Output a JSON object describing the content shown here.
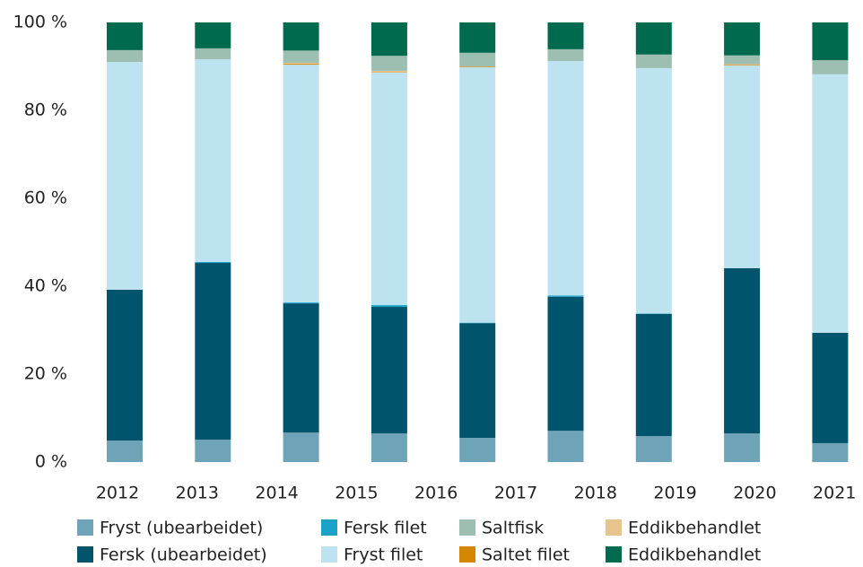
{
  "chart_data": {
    "type": "stacked_bar",
    "categories": [
      "2012",
      "2013",
      "2014",
      "2015",
      "2016",
      "2017",
      "2018",
      "2019",
      "2020",
      "2021"
    ],
    "ylim": [
      0,
      100
    ],
    "yticks": [
      {
        "value": 0,
        "label": "0 %"
      },
      {
        "value": 20,
        "label": "20 %"
      },
      {
        "value": 40,
        "label": "40 %"
      },
      {
        "value": 60,
        "label": "60 %"
      },
      {
        "value": 80,
        "label": "80 %"
      },
      {
        "value": 100,
        "label": "100 %"
      }
    ],
    "grid": false,
    "series": [
      {
        "name": "Fryst (ubearbeidet)",
        "color": "#6ea3b8",
        "values": [
          4.9,
          5.1,
          6.7,
          6.5,
          5.5,
          7.1,
          5.9,
          6.5,
          4.3,
          null
        ]
      },
      {
        "name": "Fersk (ubearbeidet)",
        "color": "#00546b",
        "values": [
          34.3,
          40.2,
          29.4,
          28.8,
          26.1,
          30.5,
          27.8,
          37.6,
          25.1,
          null
        ]
      },
      {
        "name": "Fersk filet",
        "color": "#1aa3c9",
        "values": [
          0,
          0.2,
          0.2,
          0.4,
          0.1,
          0.3,
          0.1,
          0,
          0,
          null
        ]
      },
      {
        "name": "Fryst filet",
        "color": "#bde3f1",
        "values": [
          51.8,
          46.1,
          54.1,
          52.9,
          58.1,
          53.3,
          55.8,
          46.1,
          58.8,
          null
        ]
      },
      {
        "name": "Saltet filet",
        "color": "#d48700",
        "values": [
          0,
          0,
          0.2,
          0.1,
          0.1,
          0,
          0,
          0.1,
          0,
          null
        ]
      },
      {
        "name": "Eddikbehandlet",
        "color": "#e8c48f",
        "values": [
          0,
          0,
          0.2,
          0.3,
          0.1,
          0,
          0,
          0.2,
          0,
          null
        ]
      },
      {
        "name": "Saltfisk",
        "color": "#9dbfb1",
        "values": [
          2.7,
          2.5,
          2.8,
          3.4,
          3.1,
          2.7,
          3.1,
          2.0,
          3.2,
          null
        ]
      },
      {
        "name": "Eddikbehandlet",
        "color": "#006a4e",
        "values": [
          6.3,
          5.9,
          6.4,
          7.6,
          6.9,
          6.1,
          7.3,
          7.5,
          8.6,
          null
        ]
      }
    ]
  }
}
